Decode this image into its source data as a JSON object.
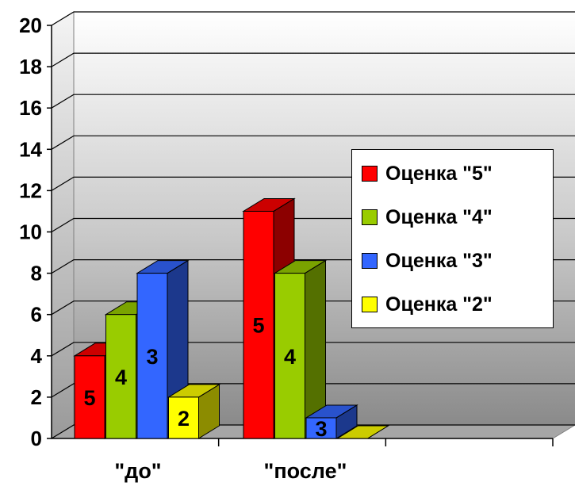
{
  "chart_data": {
    "type": "bar",
    "categories": [
      "\"до\"",
      "\"после\""
    ],
    "series": [
      {
        "name": "Оценка \"5\"",
        "values": [
          4,
          11
        ],
        "labels": [
          "5",
          "5"
        ],
        "color": "#ff0000"
      },
      {
        "name": "Оценка \"4\"",
        "values": [
          6,
          8
        ],
        "labels": [
          "4",
          "4"
        ],
        "color": "#99cc00"
      },
      {
        "name": "Оценка \"3\"",
        "values": [
          8,
          1
        ],
        "labels": [
          "3",
          "3"
        ],
        "color": "#3366ff"
      },
      {
        "name": "Оценка \"2\"",
        "values": [
          2,
          0
        ],
        "labels": [
          "2",
          ""
        ],
        "color": "#ffff00"
      }
    ],
    "yticks": [
      "0",
      "2",
      "4",
      "6",
      "8",
      "10",
      "12",
      "14",
      "16",
      "18",
      "20"
    ],
    "ylim": [
      0,
      20
    ],
    "grid": true,
    "legend": "right",
    "title": "",
    "xlabel": "",
    "ylabel": ""
  }
}
